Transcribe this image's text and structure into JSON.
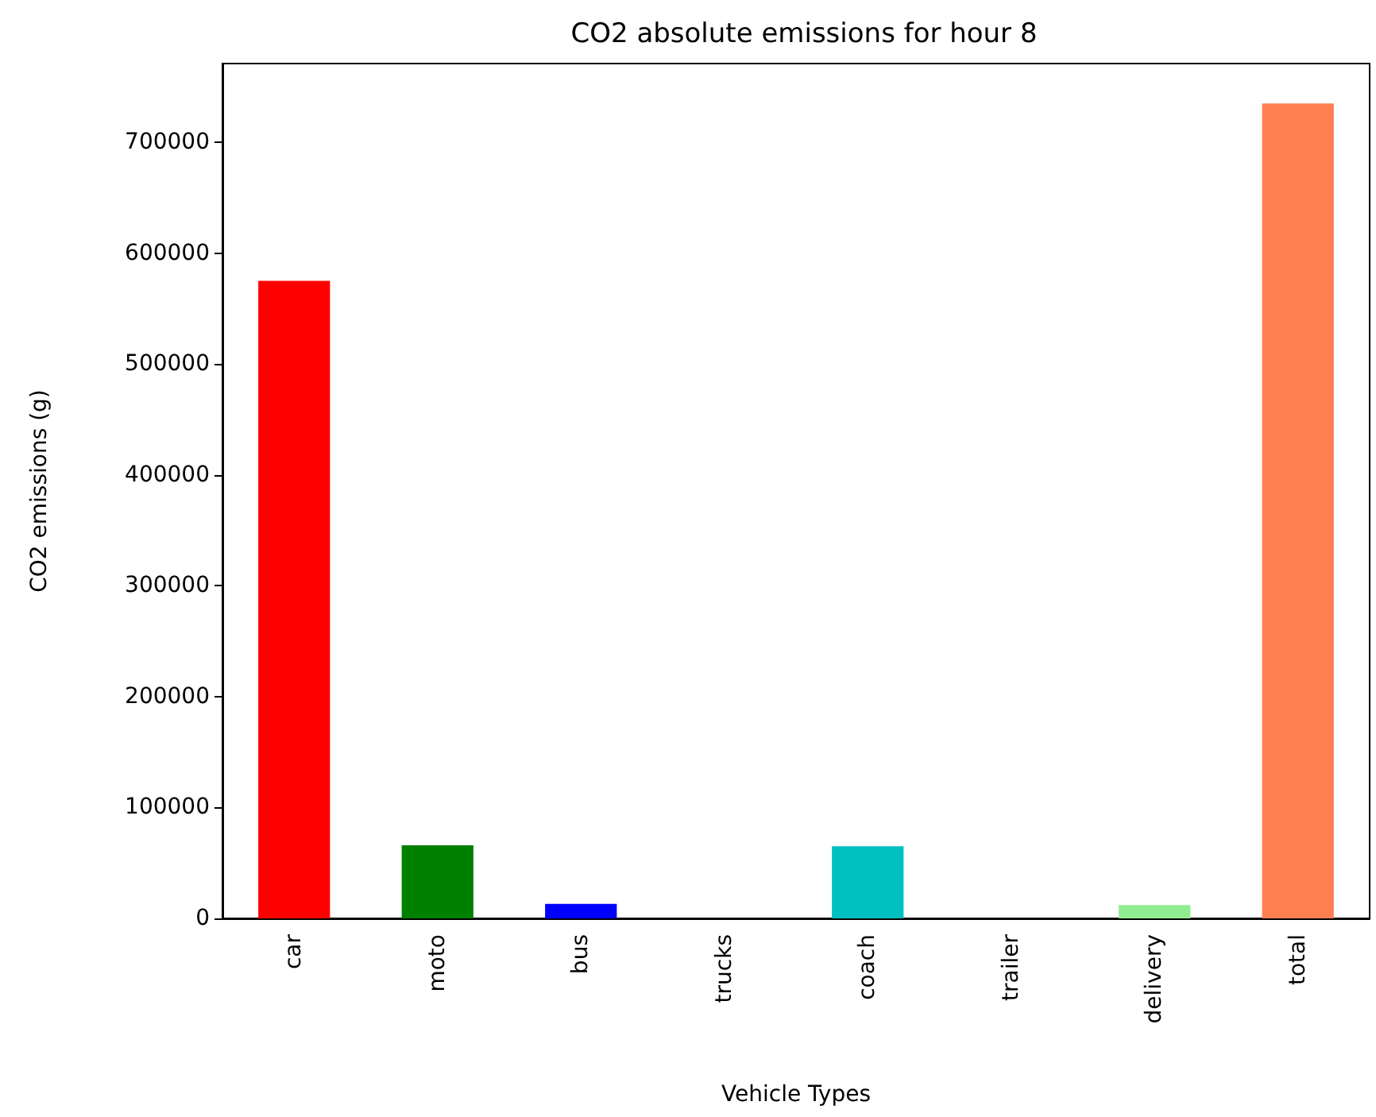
{
  "chart_data": {
    "type": "bar",
    "title": "CO2 absolute emissions for hour 8",
    "xlabel": "Vehicle Types",
    "ylabel": "CO2 emissions (g)",
    "categories": [
      "car",
      "moto",
      "bus",
      "trucks",
      "coach",
      "trailer",
      "delivery",
      "total"
    ],
    "values": [
      575000,
      66000,
      13000,
      0,
      65000,
      0,
      12000,
      735000
    ],
    "colors": [
      "#ff0000",
      "#008000",
      "#0000ff",
      "#bfbf00",
      "#00bfbf",
      "#bf00bf",
      "#90ee90",
      "#ff7f50"
    ],
    "ylim": [
      0,
      771000
    ],
    "yticks": [
      0,
      100000,
      200000,
      300000,
      400000,
      500000,
      600000,
      700000
    ],
    "grid": false
  }
}
